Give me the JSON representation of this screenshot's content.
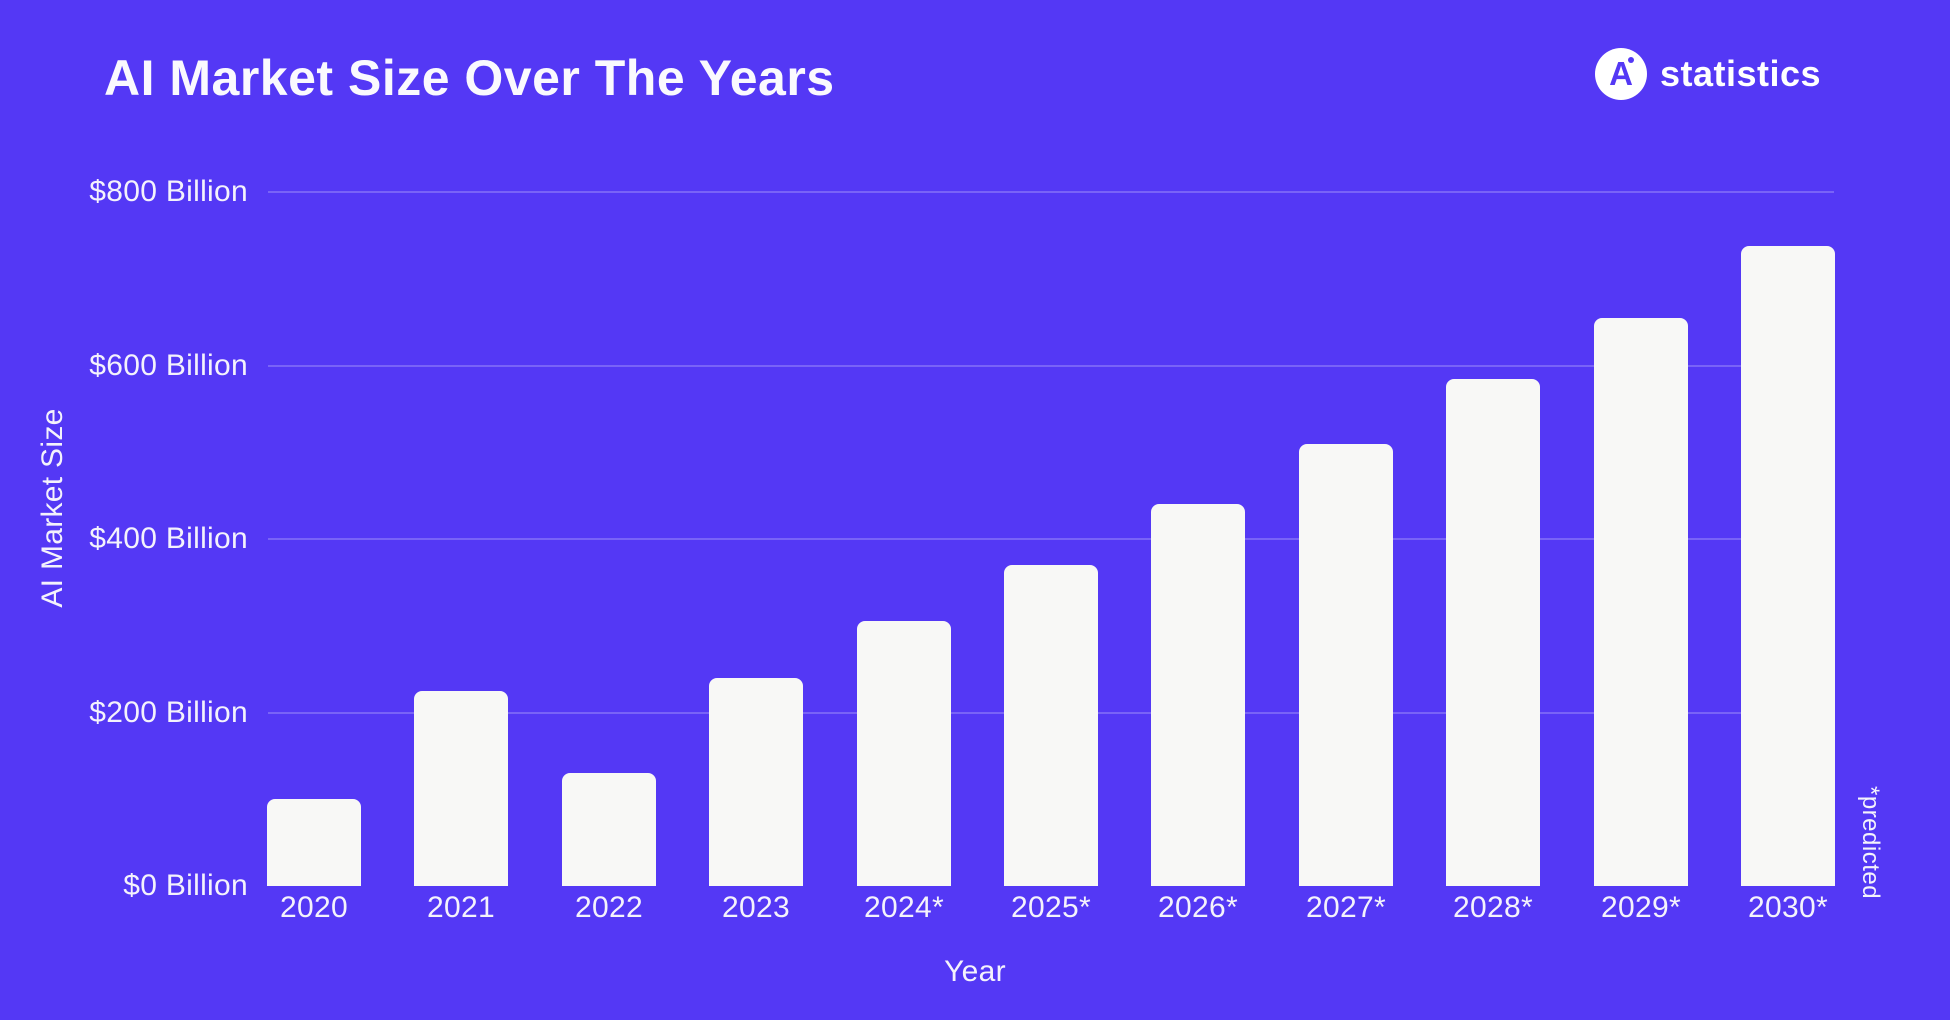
{
  "page": {
    "background": "#5438F5"
  },
  "header": {
    "title": "AI Market Size Over The Years"
  },
  "logo": {
    "monogram": "A",
    "text": "statistics"
  },
  "chart_data": {
    "type": "bar",
    "title": "AI Market Size Over The Years",
    "xlabel": "Year",
    "ylabel": "AI Market Size",
    "unit": "USD Billion",
    "categories": [
      "2020",
      "2021",
      "2022",
      "2023",
      "2024*",
      "2025*",
      "2026*",
      "2027*",
      "2028*",
      "2029*",
      "2030*"
    ],
    "values": [
      100,
      225,
      130,
      240,
      305,
      370,
      440,
      510,
      585,
      655,
      738
    ],
    "yticks": [
      {
        "value": 0,
        "label": "$0 Billion"
      },
      {
        "value": 200,
        "label": "$200 Billion"
      },
      {
        "value": 400,
        "label": "$400 Billion"
      },
      {
        "value": 600,
        "label": "$600 Billion"
      },
      {
        "value": 800,
        "label": "$800 Billion"
      }
    ],
    "ylim": [
      0,
      800
    ],
    "grid": true,
    "legend": false,
    "footnote": "*predicted",
    "colors": {
      "background": "#5438F5",
      "bar": "#F8F8F6",
      "text": "#FFFFFF",
      "gridline": "rgba(255,255,255,0.22)"
    }
  }
}
